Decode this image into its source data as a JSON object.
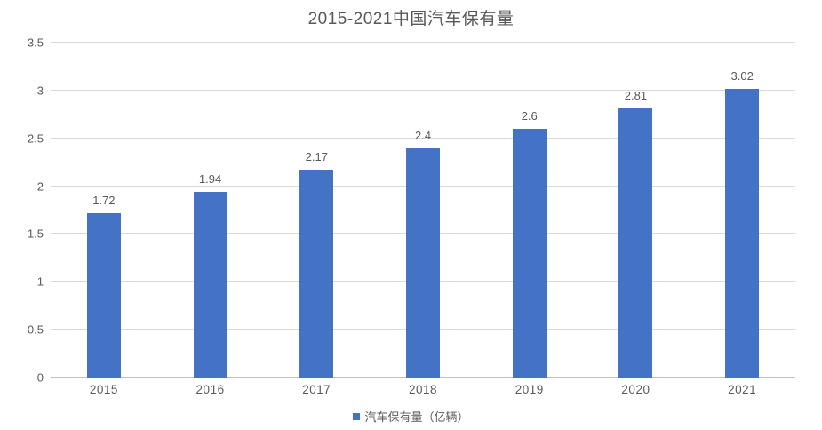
{
  "chart_data": {
    "type": "bar",
    "title": "2015-2021中国汽车保有量",
    "categories": [
      "2015",
      "2016",
      "2017",
      "2018",
      "2019",
      "2020",
      "2021"
    ],
    "series": [
      {
        "name": "汽车保有量（亿辆）",
        "values": [
          1.72,
          1.94,
          2.17,
          2.4,
          2.6,
          2.81,
          3.02
        ]
      }
    ],
    "data_labels": [
      "1.72",
      "1.94",
      "2.17",
      "2.4",
      "2.6",
      "2.81",
      "3.02"
    ],
    "xlabel": "",
    "ylabel": "",
    "ylim": [
      0,
      3.5
    ],
    "ytick_step": 0.5,
    "yticks": [
      "0",
      "0.5",
      "1",
      "1.5",
      "2",
      "2.5",
      "3",
      "3.5"
    ],
    "grid": true,
    "legend_position": "bottom",
    "colors": {
      "bar": "#4472c4",
      "text": "#595959",
      "gridline": "#d9d9d9",
      "axis_line": "#c0c0c0",
      "background": "#ffffff"
    }
  }
}
